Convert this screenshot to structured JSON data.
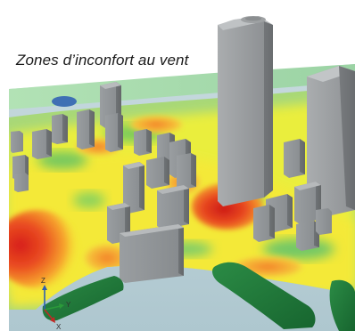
{
  "caption": "Zones d’inconfort au vent",
  "legend_axes": {
    "z": "Z",
    "y": "Y",
    "x": "X"
  },
  "colors": {
    "ground_plane": "#b9cdd3",
    "grass": "#9fd8a8",
    "water": "#3f6fb4",
    "comfort_green": "#8fcf57",
    "comfort_yellow": "#f3ec38",
    "discomfort_orange": "#f39a2b",
    "discomfort_red": "#de2d21",
    "building_gray": "#8f9396",
    "tree_green": "#1f7a39"
  }
}
